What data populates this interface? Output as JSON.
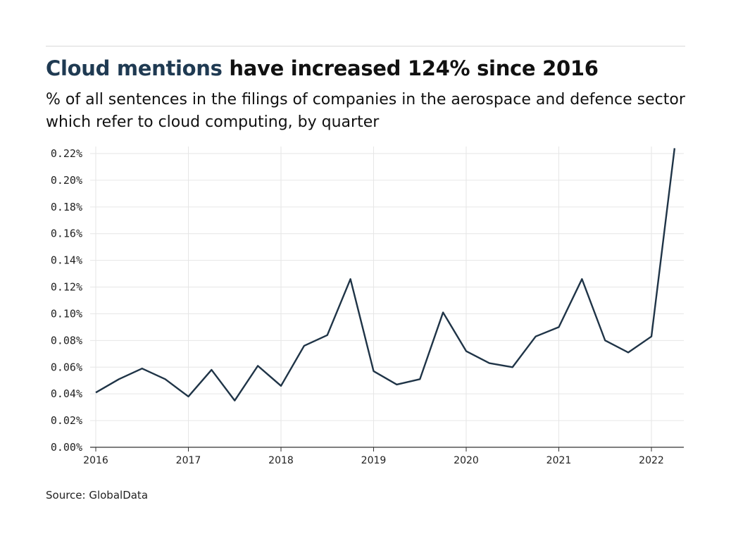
{
  "title_highlight": "Cloud mentions",
  "title_rest": " have increased 124% since 2016",
  "subtitle": "% of all sentences in the filings of companies in the aerospace and defence sector which refer to cloud computing, by quarter",
  "source": "Source: GlobalData",
  "colors": {
    "line": "#1f3447",
    "title_highlight": "#1f3a52",
    "grid": "#e6e6e6"
  },
  "chart_data": {
    "type": "line",
    "title": "Cloud mentions have increased 124% since 2016",
    "ylabel": "",
    "xlabel": "",
    "xlim": [
      2016,
      2022.25
    ],
    "ylim": [
      0,
      0.22
    ],
    "grid": true,
    "x_ticks": [
      "2016",
      "2017",
      "2018",
      "2019",
      "2020",
      "2021",
      "2022"
    ],
    "y_ticks": [
      "0.00%",
      "0.02%",
      "0.04%",
      "0.06%",
      "0.08%",
      "0.10%",
      "0.12%",
      "0.14%",
      "0.16%",
      "0.18%",
      "0.20%",
      "0.22%"
    ],
    "x": [
      "2016 Q1",
      "2016 Q2",
      "2016 Q3",
      "2016 Q4",
      "2017 Q1",
      "2017 Q2",
      "2017 Q3",
      "2017 Q4",
      "2018 Q1",
      "2018 Q2",
      "2018 Q3",
      "2018 Q4",
      "2019 Q1",
      "2019 Q2",
      "2019 Q3",
      "2019 Q4",
      "2020 Q1",
      "2020 Q2",
      "2020 Q3",
      "2020 Q4",
      "2021 Q1",
      "2021 Q2",
      "2021 Q3",
      "2021 Q4",
      "2022 Q1",
      "2022 Q2"
    ],
    "values": [
      0.041,
      0.051,
      0.059,
      0.051,
      0.038,
      0.058,
      0.035,
      0.061,
      0.046,
      0.076,
      0.084,
      0.126,
      0.057,
      0.047,
      0.051,
      0.101,
      0.072,
      0.063,
      0.06,
      0.083,
      0.09,
      0.126,
      0.08,
      0.071,
      0.083,
      0.224
    ]
  }
}
